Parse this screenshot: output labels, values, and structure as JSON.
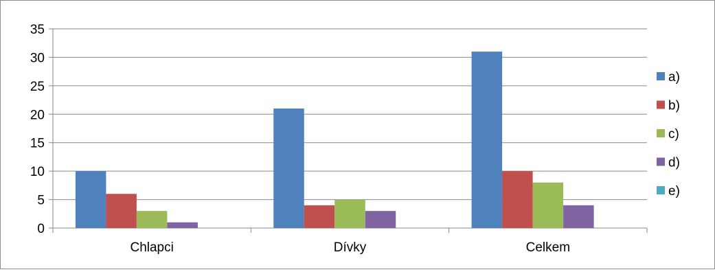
{
  "chart_data": {
    "type": "bar",
    "categories": [
      "Chlapci",
      "Dívky",
      "Celkem"
    ],
    "series": [
      {
        "name": "a)",
        "color": "#4F81BD",
        "values": [
          10,
          21,
          31
        ]
      },
      {
        "name": "b)",
        "color": "#C0504D",
        "values": [
          6,
          4,
          10
        ]
      },
      {
        "name": "c)",
        "color": "#9BBB59",
        "values": [
          3,
          5,
          8
        ]
      },
      {
        "name": "d)",
        "color": "#8064A2",
        "values": [
          1,
          3,
          4
        ]
      },
      {
        "name": "e)",
        "color": "#4BACC6",
        "values": [
          0,
          0,
          0
        ]
      }
    ],
    "ylim": [
      0,
      35
    ],
    "yticks": [
      "0",
      "5",
      "10",
      "15",
      "20",
      "25",
      "30",
      "35"
    ],
    "grid": true,
    "legend_position": "right",
    "title": "",
    "xlabel": "",
    "ylabel": ""
  }
}
